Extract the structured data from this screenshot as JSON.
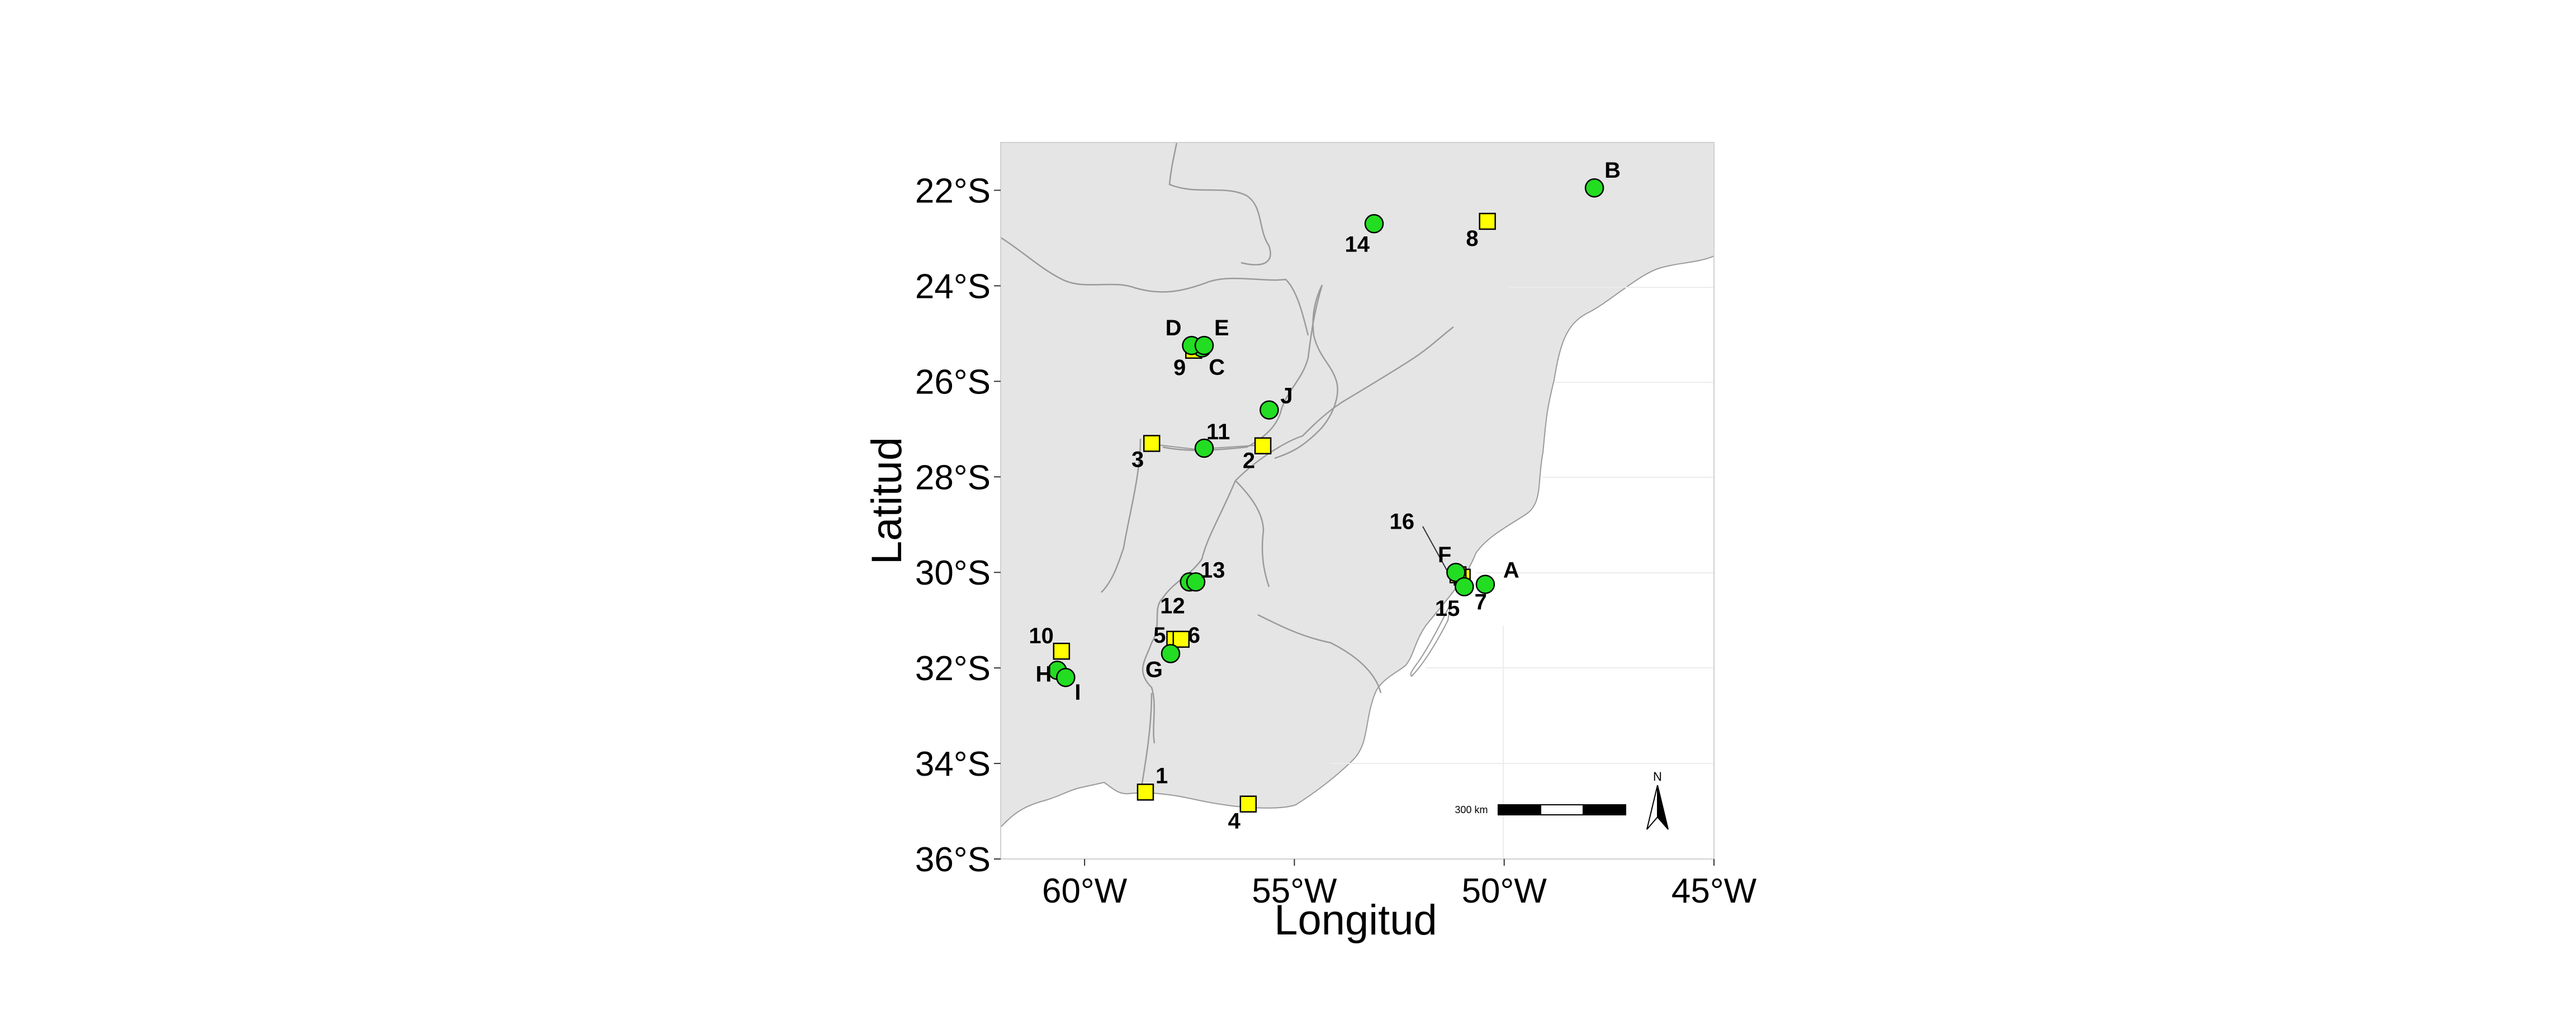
{
  "map": {
    "xlabel": "Longitud",
    "ylabel": "Latitud",
    "scale_label": "300 km",
    "north_label": "N",
    "lon_ticks": [
      {
        "value": -60,
        "label": "60°W"
      },
      {
        "value": -55,
        "label": "55°W"
      },
      {
        "value": -50,
        "label": "50°W"
      },
      {
        "value": -45,
        "label": "45°W"
      }
    ],
    "lat_ticks": [
      {
        "value": -22,
        "label": "22°S"
      },
      {
        "value": -24,
        "label": "24°S"
      },
      {
        "value": -26,
        "label": "26°S"
      },
      {
        "value": -28,
        "label": "28°S"
      },
      {
        "value": -30,
        "label": "30°S"
      },
      {
        "value": -32,
        "label": "32°S"
      },
      {
        "value": -34,
        "label": "34°S"
      },
      {
        "value": -36,
        "label": "36°S"
      }
    ],
    "colors": {
      "land": "#e5e5e5",
      "sea": "#ffffff",
      "border": "#9a9a9a",
      "circle_site": "#22dd22",
      "square_site": "#ffff00"
    },
    "circle_sites": [
      {
        "label": "A",
        "lon": -50.45,
        "lat": -30.25
      },
      {
        "label": "B",
        "lon": -47.85,
        "lat": -21.95
      },
      {
        "label": "C",
        "lon": -57.2,
        "lat": -25.3
      },
      {
        "label": "D",
        "lon": -57.45,
        "lat": -25.25
      },
      {
        "label": "E",
        "lon": -57.15,
        "lat": -25.25
      },
      {
        "label": "F",
        "lon": -51.15,
        "lat": -30.0
      },
      {
        "label": "G",
        "lon": -57.95,
        "lat": -31.7
      },
      {
        "label": "H",
        "lon": -60.65,
        "lat": -32.05
      },
      {
        "label": "I",
        "lon": -60.45,
        "lat": -32.2
      },
      {
        "label": "J",
        "lon": -55.6,
        "lat": -26.6
      },
      {
        "label": "11",
        "lon": -57.15,
        "lat": -27.4
      },
      {
        "label": "12",
        "lon": -57.5,
        "lat": -30.2
      },
      {
        "label": "13",
        "lon": -57.35,
        "lat": -30.2
      },
      {
        "label": "14",
        "lon": -53.1,
        "lat": -22.7
      },
      {
        "label": "15",
        "lon": -50.95,
        "lat": -30.3
      }
    ],
    "square_sites": [
      {
        "label": "1",
        "lon": -58.55,
        "lat": -34.6
      },
      {
        "label": "2",
        "lon": -55.75,
        "lat": -27.35
      },
      {
        "label": "3",
        "lon": -58.4,
        "lat": -27.3
      },
      {
        "label": "4",
        "lon": -56.1,
        "lat": -34.85
      },
      {
        "label": "5",
        "lon": -57.85,
        "lat": -31.4
      },
      {
        "label": "6",
        "lon": -57.7,
        "lat": -31.4
      },
      {
        "label": "7",
        "lon": -51.0,
        "lat": -30.1
      },
      {
        "label": "8",
        "lon": -50.4,
        "lat": -22.65
      },
      {
        "label": "9",
        "lon": -57.4,
        "lat": -25.35
      },
      {
        "label": "10",
        "lon": -60.55,
        "lat": -31.65
      },
      {
        "label": "16",
        "lon": -51.1,
        "lat": -30.05
      }
    ]
  }
}
